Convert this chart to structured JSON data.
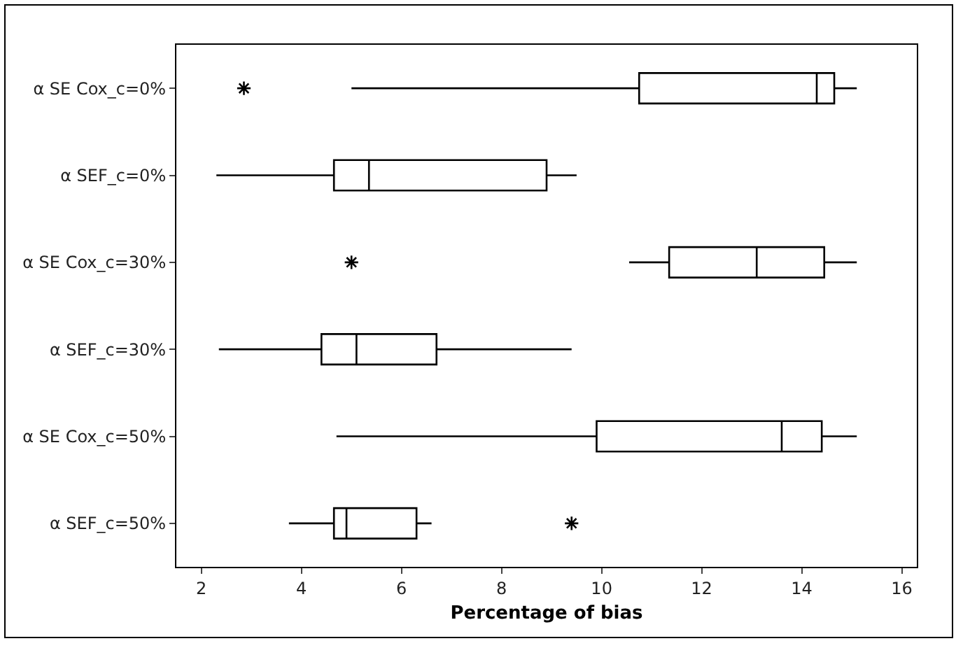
{
  "chart_data": {
    "type": "box",
    "orientation": "horizontal",
    "xlabel": "Percentage of bias",
    "categories": [
      "α SE Cox_c=0%",
      "α SEF_c=0%",
      "α SE Cox_c=30%",
      "α SEF_c=30%",
      "α SE Cox_c=50%",
      "α SEF_c=50%"
    ],
    "boxes": [
      {
        "low": 5.0,
        "q1": 10.75,
        "median": 14.3,
        "q3": 14.65,
        "high": 15.1,
        "outliers": [
          2.85
        ]
      },
      {
        "low": 2.3,
        "q1": 4.65,
        "median": 5.35,
        "q3": 8.9,
        "high": 9.5
      },
      {
        "low": 10.55,
        "q1": 11.35,
        "median": 13.1,
        "q3": 14.45,
        "high": 15.1,
        "outliers": [
          5.0
        ]
      },
      {
        "low": 2.35,
        "q1": 4.4,
        "median": 5.1,
        "q3": 6.7,
        "high": 9.4
      },
      {
        "low": 4.7,
        "q1": 9.9,
        "median": 13.6,
        "q3": 14.4,
        "high": 15.1
      },
      {
        "low": 3.75,
        "q1": 4.65,
        "median": 4.9,
        "q3": 6.3,
        "high": 6.6,
        "outliers": [
          9.4
        ]
      }
    ],
    "color": "#000000",
    "marker": "cross",
    "xlim": [
      1.5,
      16.3
    ],
    "xticks": [
      2,
      4,
      6,
      8,
      10,
      12,
      14,
      16
    ],
    "grid": false
  }
}
